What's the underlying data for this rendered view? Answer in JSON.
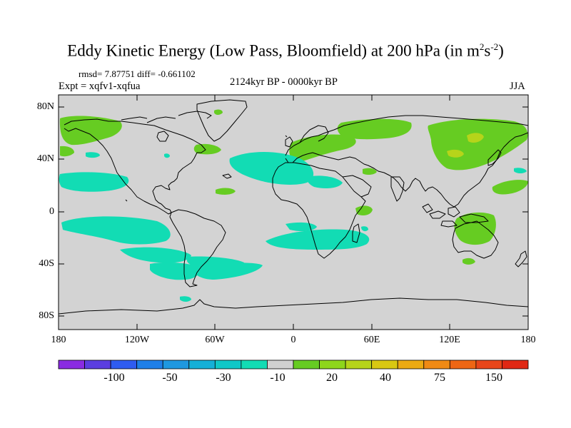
{
  "title": {
    "main": "Eddy Kinetic Energy (Low Pass, Bloomfield) at 200 hPa (in m",
    "exp1": "2",
    "mid": "s",
    "exp2": "-2",
    "close": ")"
  },
  "stats": {
    "rmsd": "rmsd= 7.87751 diff= -0.661102",
    "expt": "Expt = xqfv1-xqfua"
  },
  "period": "2124kyr BP - 0000kyr BP",
  "season": "JJA",
  "map": {
    "projection": "cylindrical equidistant",
    "lon_range": [
      -180,
      180
    ],
    "lat_range": [
      -90,
      90
    ],
    "background_color": "#d3d3d3",
    "coastline_color": "#000000",
    "lat_ticks": [
      "80N",
      "40N",
      "0",
      "40S",
      "80S"
    ],
    "lon_ticks": [
      "180",
      "120W",
      "60W",
      "0",
      "60E",
      "120E",
      "180"
    ],
    "field_description": "difference field shading"
  },
  "colorbar": {
    "colors": [
      "#8a2be2",
      "#5b3ee0",
      "#2f5cf0",
      "#1e7fe8",
      "#1e98e0",
      "#15b0d8",
      "#10c8c8",
      "#12dcb4",
      "#d0d0d0",
      "#66cc22",
      "#8ed61c",
      "#b6d41a",
      "#d9c812",
      "#ecaa12",
      "#f08a14",
      "#ee6614",
      "#e8461a",
      "#e02814"
    ],
    "labels": [
      "-100",
      "-50",
      "-30",
      "-10",
      "20",
      "40",
      "75",
      "150"
    ]
  }
}
